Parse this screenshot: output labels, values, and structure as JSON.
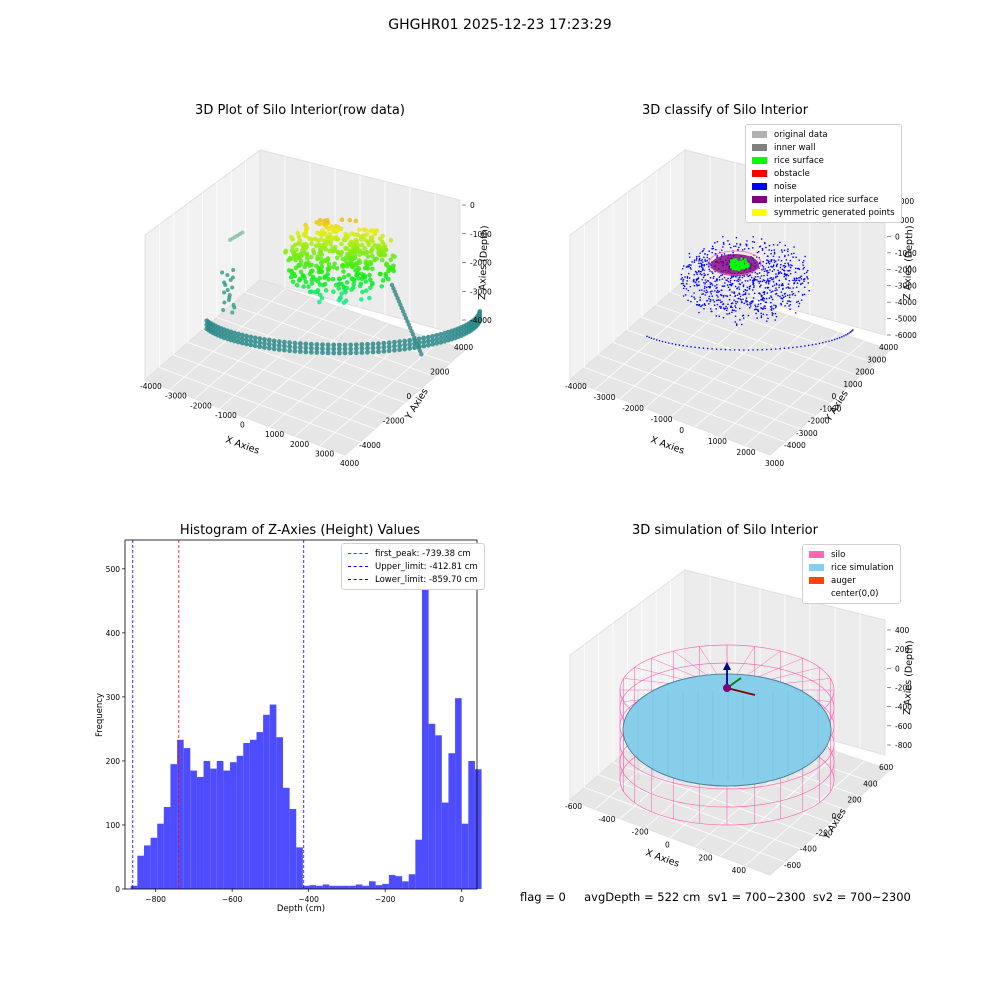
{
  "suptitle": "GHGHR01 2025-12-23 17:23:29",
  "colors": {
    "hist_bar": "#4d4dff",
    "red_line": "#ff0000",
    "blue_line": "#0000ff",
    "silo": "#ff69b4",
    "rice_simulation": "#87ceeb",
    "auger": "#ff4500",
    "original_data": "#b0b0b0",
    "inner_wall": "#808080",
    "rice_surface": "#00ff00",
    "obstacle": "#ff0000",
    "noise": "#0000ff",
    "interpolated_rice_surface": "#800080",
    "symmetric_generated_points": "#ffff00"
  },
  "plot1": {
    "title": "3D Plot of Silo Interior(row data)",
    "xlabel": "X Axies",
    "ylabel": "Y Axies",
    "zlabel": "Z Axies (Depth)",
    "x_ticks": [
      "-4000",
      "-3000",
      "-2000",
      "-1000",
      "0",
      "1000",
      "2000",
      "3000",
      "4000"
    ],
    "y_ticks": [
      "-4000",
      "-2000",
      "0",
      "2000",
      "4000"
    ],
    "z_ticks": [
      "0",
      "-1000",
      "-2000",
      "-3000",
      "-4000"
    ]
  },
  "plot2": {
    "title": "3D classify of Silo Interior",
    "xlabel": "X Axies",
    "ylabel": "Y Axies",
    "zlabel": "Z Axies (Depth)",
    "x_ticks": [
      "-4000",
      "-3000",
      "-2000",
      "-1000",
      "0",
      "1000",
      "2000",
      "3000"
    ],
    "y_ticks": [
      "-4000",
      "-3000",
      "-2000",
      "-1000",
      "0",
      "1000",
      "2000",
      "3000",
      "4000"
    ],
    "z_ticks": [
      "1000",
      "0",
      "-1000",
      "-2000",
      "-3000",
      "-4000",
      "-5000",
      "-6000"
    ],
    "z_top_partial": "2000",
    "legend": [
      "original data",
      "inner wall",
      "rice surface",
      "obstacle",
      "noise",
      "interpolated rice surface",
      "symmetric generated points"
    ]
  },
  "plot4": {
    "title": "3D simulation of Silo Interior",
    "xlabel": "X Axies",
    "ylabel": "Y Axies",
    "zlabel": "Z Axies (Depth)",
    "x_ticks": [
      "-600",
      "-400",
      "-200",
      "0",
      "200",
      "400",
      "600"
    ],
    "y_ticks": [
      "-600",
      "-400",
      "-200",
      "0",
      "200",
      "400",
      "600"
    ],
    "z_ticks": [
      "400",
      "200",
      "0",
      "-200",
      "-400",
      "-600",
      "-800"
    ],
    "legend": [
      "silo",
      "rice simulation",
      "auger",
      "center(0,0)"
    ]
  },
  "status_text": "flag = 0     avgDepth = 522 cm  sv1 = 700~2300  sv2 = 700~2300",
  "chart_data": [
    {
      "type": "histogram",
      "title": "Histogram of Z-Axies (Height) Values",
      "xlabel": "Depth (cm)",
      "ylabel": "Frequency",
      "xlim": [
        -880,
        40
      ],
      "ylim": [
        0,
        545
      ],
      "x_ticks": [
        -800,
        -600,
        -400,
        -200,
        0
      ],
      "y_ticks": [
        0,
        100,
        200,
        300,
        400,
        500
      ],
      "bin_start": -865,
      "bin_width": 17.3,
      "counts": [
        5,
        52,
        68,
        80,
        102,
        128,
        195,
        233,
        220,
        185,
        175,
        200,
        188,
        200,
        185,
        198,
        208,
        228,
        233,
        245,
        272,
        288,
        237,
        158,
        125,
        65,
        5,
        6,
        5,
        7,
        5,
        5,
        5,
        5,
        7,
        5,
        12,
        6,
        8,
        22,
        20,
        12,
        23,
        77,
        510,
        258,
        240,
        135,
        212,
        298,
        102,
        200,
        187
      ],
      "vlines": [
        {
          "label": "first_peak: -739.38 cm",
          "x": -739.38,
          "color": "red"
        },
        {
          "label": "Upper_limit: -412.81 cm",
          "x": -412.81,
          "color": "blue"
        },
        {
          "label": "Lower_limit: -859.70 cm",
          "x": -859.7,
          "color": "blue"
        }
      ],
      "legend_position": "top-right"
    }
  ]
}
